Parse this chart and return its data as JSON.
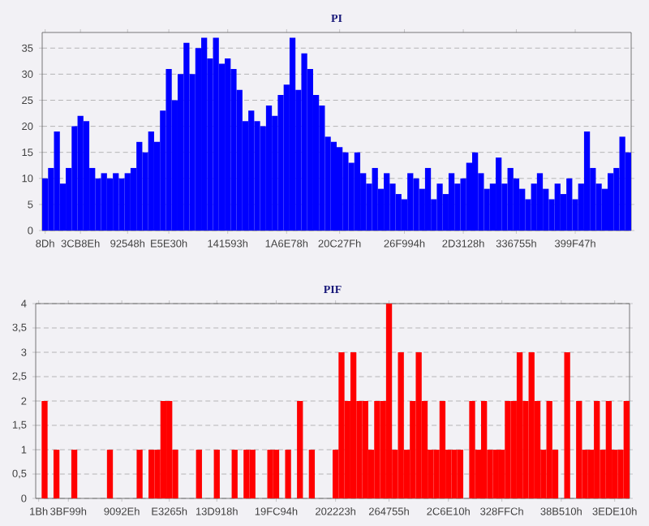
{
  "chart_data": [
    {
      "type": "bar",
      "title": "PI",
      "color": "#0000ff",
      "grid": "y",
      "ylim": [
        0,
        38
      ],
      "yticks": [
        0,
        5,
        10,
        15,
        20,
        25,
        30,
        35
      ],
      "categories": [
        "8Dh",
        null,
        null,
        null,
        null,
        null,
        "3CB8Eh",
        null,
        null,
        null,
        null,
        null,
        null,
        null,
        "92548h",
        null,
        null,
        null,
        null,
        null,
        null,
        "E5E30h",
        null,
        null,
        null,
        null,
        null,
        null,
        null,
        null,
        null,
        "141593h",
        null,
        null,
        null,
        null,
        null,
        null,
        null,
        null,
        null,
        "1A6E78h",
        null,
        null,
        null,
        null,
        null,
        null,
        null,
        null,
        "20C27Fh",
        null,
        null,
        null,
        null,
        null,
        null,
        null,
        null,
        null,
        null,
        "26F994h",
        null,
        null,
        null,
        null,
        null,
        null,
        null,
        null,
        null,
        "2D3128h",
        null,
        null,
        null,
        null,
        null,
        null,
        null,
        null,
        "336755h",
        null,
        null,
        null,
        null,
        null,
        null,
        null,
        null,
        null,
        "399F47h",
        null,
        null,
        null,
        null,
        null,
        null,
        null,
        null,
        null
      ],
      "values": [
        10,
        12,
        19,
        9,
        12,
        20,
        22,
        21,
        12,
        10,
        11,
        10,
        11,
        10,
        11,
        12,
        17,
        15,
        19,
        17,
        23,
        31,
        25,
        30,
        36,
        30,
        35,
        37,
        33,
        37,
        32,
        33,
        31,
        27,
        21,
        23,
        21,
        20,
        24,
        22,
        26,
        28,
        37,
        27,
        34,
        31,
        26,
        24,
        18,
        17,
        16,
        15,
        13,
        15,
        11,
        9,
        12,
        8,
        11,
        9,
        7,
        6,
        11,
        10,
        8,
        12,
        6,
        9,
        7,
        11,
        9,
        10,
        13,
        15,
        11,
        8,
        9,
        14,
        9,
        12,
        10,
        8,
        6,
        9,
        11,
        8,
        6,
        9,
        7,
        10,
        6,
        9,
        19,
        12,
        9,
        8,
        11,
        12,
        18,
        15
      ]
    },
    {
      "type": "bar",
      "title": "PIF",
      "color": "#ff0000",
      "grid": "y",
      "ylim": [
        0,
        4
      ],
      "yticks": [
        0,
        {
          "value": 0.5,
          "label": "0,5"
        },
        1,
        {
          "value": 1.5,
          "label": "1,5"
        },
        2,
        {
          "value": 2.5,
          "label": "2,5"
        },
        3,
        {
          "value": 3.5,
          "label": "3,5"
        },
        4
      ],
      "categories": [
        "1Bh",
        null,
        null,
        null,
        null,
        "3BF99h",
        null,
        null,
        null,
        null,
        null,
        null,
        null,
        null,
        "9092Eh",
        null,
        null,
        null,
        null,
        null,
        null,
        null,
        "E3265h",
        null,
        null,
        null,
        null,
        null,
        null,
        null,
        "13D918h",
        null,
        null,
        null,
        null,
        null,
        null,
        null,
        null,
        null,
        "19FC94h",
        null,
        null,
        null,
        null,
        null,
        null,
        null,
        null,
        null,
        "202223h",
        null,
        null,
        null,
        null,
        null,
        null,
        null,
        null,
        "264755h",
        null,
        null,
        null,
        null,
        null,
        null,
        null,
        null,
        null,
        "2C6E10h",
        null,
        null,
        null,
        null,
        null,
        null,
        null,
        null,
        "328FFCh",
        null,
        null,
        null,
        null,
        null,
        null,
        null,
        null,
        null,
        "38B510h",
        null,
        null,
        null,
        null,
        null,
        null,
        null,
        null,
        "3EDE10h",
        null,
        null
      ],
      "values": [
        0,
        2,
        0,
        1,
        0,
        0,
        1,
        0,
        0,
        0,
        0,
        0,
        1,
        0,
        0,
        0,
        0,
        1,
        0,
        1,
        1,
        2,
        2,
        1,
        0,
        0,
        0,
        1,
        0,
        0,
        1,
        0,
        0,
        1,
        0,
        1,
        1,
        0,
        0,
        1,
        1,
        0,
        1,
        0,
        2,
        0,
        1,
        0,
        0,
        0,
        1,
        3,
        2,
        3,
        2,
        2,
        1,
        2,
        2,
        4,
        1,
        3,
        1,
        2,
        3,
        2,
        1,
        1,
        2,
        1,
        1,
        1,
        0,
        2,
        1,
        2,
        1,
        1,
        1,
        2,
        2,
        3,
        2,
        3,
        2,
        1,
        2,
        1,
        0,
        3,
        0,
        2,
        1,
        1,
        2,
        1,
        2,
        1,
        1,
        2
      ]
    }
  ]
}
